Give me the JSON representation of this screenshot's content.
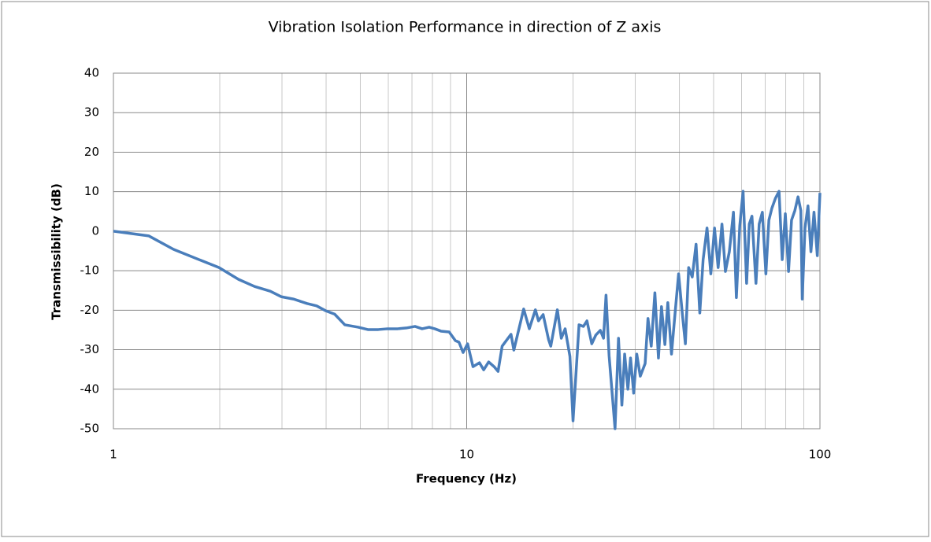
{
  "chart_data": {
    "type": "line",
    "title": "Vibration Isolation Performance in direction of Z axis",
    "x_label": "Frequency (Hz)",
    "y_label": "Transmissibility (dB)",
    "x_scale": "log",
    "minor_grid": true,
    "grid": true,
    "color": "#4a7ebb",
    "xlim": [
      1,
      100
    ],
    "xticks": [
      1,
      10,
      100
    ],
    "ylim": [
      -50,
      40
    ],
    "yticks": [
      -50,
      -40,
      -30,
      -20,
      -10,
      0,
      10,
      20,
      30,
      40
    ],
    "x": [
      1,
      1.26,
      1.48,
      1.77,
      1.99,
      2.26,
      2.51,
      2.78,
      2.99,
      3.24,
      3.53,
      3.76,
      3.98,
      4.23,
      4.52,
      4.93,
      5.25,
      5.62,
      5.97,
      6.38,
      6.75,
      7.14,
      7.48,
      7.83,
      8.12,
      8.46,
      8.92,
      9.29,
      9.51,
      9.77,
      10.06,
      10.42,
      10.87,
      11.17,
      11.54,
      11.96,
      12.27,
      12.6,
      13.35,
      13.6,
      14.5,
      15.04,
      15.65,
      15.97,
      16.46,
      17.06,
      17.3,
      18.06,
      18.53,
      19.0,
      19.6,
      20.0,
      20.8,
      21.4,
      21.9,
      22.6,
      23.2,
      23.9,
      24.4,
      24.8,
      25.3,
      26.3,
      26.9,
      27.5,
      28.0,
      28.6,
      29.1,
      29.7,
      30.3,
      31.0,
      32.0,
      32.6,
      33.3,
      34.1,
      34.9,
      35.6,
      36.4,
      37.1,
      38.0,
      38.9,
      39.8,
      40.8,
      41.6,
      42.5,
      43.5,
      44.6,
      45.7,
      46.7,
      47.9,
      49.1,
      50.3,
      51.5,
      52.8,
      54.0,
      55.4,
      56.9,
      58.0,
      59.3,
      60.6,
      62.0,
      63.1,
      64.2,
      65.9,
      67.3,
      68.7,
      70.3,
      71.7,
      73.1,
      74.8,
      76.6,
      78.2,
      79.8,
      81.5,
      83.1,
      84.9,
      86.7,
      88.3,
      89.1,
      90.7,
      92.5,
      94.3,
      96.2,
      98.3,
      100
    ],
    "values": [
      0,
      -1.2,
      -4.6,
      -7.4,
      -9.2,
      -12.2,
      -14,
      -15.2,
      -16.6,
      -17.2,
      -18.3,
      -18.9,
      -20.1,
      -21,
      -23.7,
      -24.3,
      -24.9,
      -24.9,
      -24.7,
      -24.7,
      -24.5,
      -24.1,
      -24.7,
      -24.3,
      -24.7,
      -25.3,
      -25.5,
      -27.7,
      -28.1,
      -30.7,
      -28.5,
      -34.3,
      -33.3,
      -35.1,
      -33.1,
      -34.3,
      -35.5,
      -29.1,
      -26.1,
      -30.1,
      -19.7,
      -24.7,
      -19.9,
      -22.7,
      -21.1,
      -27.5,
      -29.1,
      -19.9,
      -27.1,
      -24.7,
      -31.7,
      -48,
      -23.7,
      -24.1,
      -22.7,
      -28.5,
      -26.3,
      -25.1,
      -27.1,
      -16.2,
      -31.5,
      -50,
      -27.1,
      -44,
      -31.1,
      -40,
      -32.1,
      -41,
      -31.1,
      -36.7,
      -33.5,
      -22.1,
      -29.1,
      -15.6,
      -32.1,
      -19.1,
      -28.7,
      -18.1,
      -31.1,
      -20.7,
      -10.8,
      -21.1,
      -28.5,
      -9.2,
      -11.6,
      -3.3,
      -20.7,
      -7.2,
      0.8,
      -10.8,
      0.8,
      -9.2,
      1.8,
      -10.2,
      -5.2,
      4.8,
      -16.8,
      1.4,
      10.1,
      -13.2,
      1.8,
      3.8,
      -13.2,
      1.8,
      4.8,
      -10.8,
      2.8,
      5.8,
      8.3,
      10.1,
      -7.2,
      4.4,
      -10.2,
      2.8,
      5.2,
      8.7,
      5.2,
      -17.2,
      0.8,
      6.4,
      -5.2,
      4.8,
      -6.2,
      9.7
    ]
  }
}
